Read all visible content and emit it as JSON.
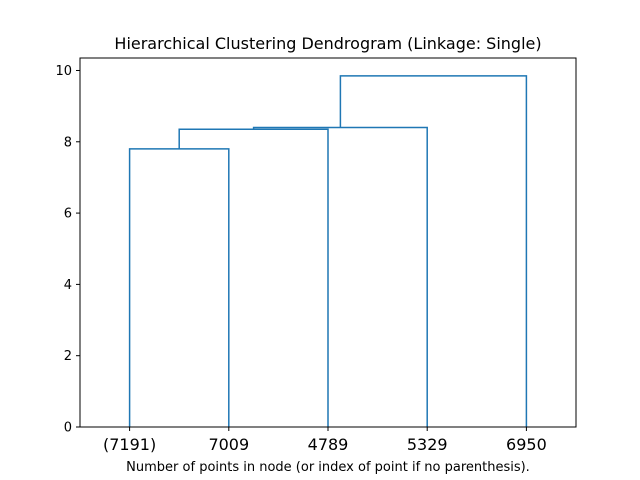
{
  "chart_data": {
    "type": "dendrogram",
    "title": "Hierarchical Clustering Dendrogram (Linkage: Single)",
    "xlabel": "Number of points in node (or index of point if no parenthesis).",
    "ylabel": "",
    "ylim": [
      0,
      10.35
    ],
    "yticks": [
      0,
      2,
      4,
      6,
      8,
      10
    ],
    "ytick_labels": [
      "0",
      "2",
      "4",
      "6",
      "8",
      "10"
    ],
    "grid": false,
    "line_color": "#1f77b4",
    "leaves": [
      "(7191)",
      "7009",
      "4789",
      "5329",
      "6950"
    ],
    "merges": [
      {
        "left": 0,
        "right": 1,
        "height": 7.8
      },
      {
        "left": 5,
        "right": 2,
        "height": 8.35
      },
      {
        "left": 6,
        "right": 3,
        "height": 8.4
      },
      {
        "left": 7,
        "right": 4,
        "height": 9.85
      }
    ]
  }
}
